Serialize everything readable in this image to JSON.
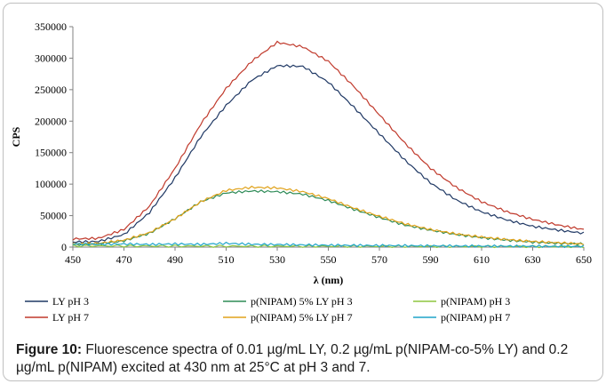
{
  "caption": {
    "label": "Figure 10:",
    "text": "Fluorescence spectra of 0.01 µg/mL LY, 0.2 µg/mL p(NIPAM-co-5% LY) and 0.2 µg/mL p(NIPAM) excited at 430 nm at 25°C at pH 3 and 7."
  },
  "chart_data": {
    "type": "line",
    "xlabel": "λ (nm)",
    "ylabel": "CPS",
    "xlim": [
      450,
      650
    ],
    "ylim": [
      0,
      350000
    ],
    "xticks": [
      450,
      470,
      490,
      510,
      530,
      550,
      570,
      590,
      610,
      630,
      650
    ],
    "yticks": [
      0,
      50000,
      100000,
      150000,
      200000,
      250000,
      300000,
      350000
    ],
    "grid": false,
    "legend_position": "bottom",
    "series": [
      {
        "name": "LY pH 3",
        "color": "#1f3864",
        "x": [
          450,
          460,
          470,
          480,
          490,
          500,
          510,
          520,
          530,
          540,
          550,
          560,
          570,
          580,
          590,
          600,
          610,
          620,
          630,
          640,
          650
        ],
        "y": [
          8000,
          9000,
          20000,
          55000,
          110000,
          175000,
          225000,
          265000,
          288000,
          287000,
          262000,
          222000,
          180000,
          138000,
          102000,
          75000,
          56000,
          43000,
          33000,
          27000,
          22000
        ]
      },
      {
        "name": "LY pH 7",
        "color": "#c0392b",
        "x": [
          450,
          460,
          470,
          480,
          490,
          500,
          510,
          520,
          530,
          540,
          550,
          560,
          570,
          580,
          590,
          600,
          610,
          620,
          630,
          640,
          650
        ],
        "y": [
          13000,
          14000,
          28000,
          65000,
          125000,
          195000,
          252000,
          295000,
          325000,
          318000,
          295000,
          255000,
          210000,
          165000,
          125000,
          95000,
          72000,
          56000,
          44000,
          35000,
          28000
        ]
      },
      {
        "name": "p(NIPAM) 5% LY pH 3",
        "color": "#2e8b57",
        "x": [
          450,
          460,
          470,
          480,
          490,
          500,
          510,
          520,
          530,
          540,
          550,
          560,
          570,
          580,
          590,
          600,
          610,
          620,
          630,
          640,
          650
        ],
        "y": [
          4000,
          5000,
          10000,
          22000,
          45000,
          72000,
          86000,
          89000,
          88000,
          84000,
          74000,
          60000,
          47000,
          35000,
          27000,
          20000,
          15000,
          11000,
          8000,
          6000,
          5000
        ]
      },
      {
        "name": "p(NIPAM) 5% LY  pH 7",
        "color": "#e0a21a",
        "x": [
          450,
          460,
          470,
          480,
          490,
          500,
          510,
          520,
          530,
          540,
          550,
          560,
          570,
          580,
          590,
          600,
          610,
          620,
          630,
          640,
          650
        ],
        "y": [
          5000,
          6000,
          11000,
          23000,
          45000,
          72000,
          90000,
          95000,
          94000,
          88000,
          77000,
          62000,
          49000,
          37000,
          28000,
          21000,
          16000,
          12000,
          9000,
          7000,
          5000
        ]
      },
      {
        "name": "p(NIPAM) pH 3",
        "color": "#8dc63f",
        "x": [
          450,
          470,
          490,
          510,
          530,
          550,
          570,
          590,
          610,
          630,
          650
        ],
        "y": [
          2000,
          1800,
          1600,
          1500,
          1400,
          1300,
          1200,
          1100,
          1000,
          900,
          800
        ]
      },
      {
        "name": "p(NIPAM) pH 7",
        "color": "#1ea4c9",
        "x": [
          450,
          460,
          470,
          480,
          490,
          500,
          510,
          520,
          530,
          540,
          550,
          560,
          570,
          580,
          590,
          600,
          610,
          620,
          630,
          640,
          650
        ],
        "y": [
          5000,
          4500,
          5000,
          4200,
          5000,
          4300,
          6000,
          4500,
          4000,
          3500,
          3000,
          2700,
          2500,
          2300,
          2000,
          1800,
          1600,
          1500,
          1400,
          1300,
          1200
        ]
      }
    ]
  }
}
